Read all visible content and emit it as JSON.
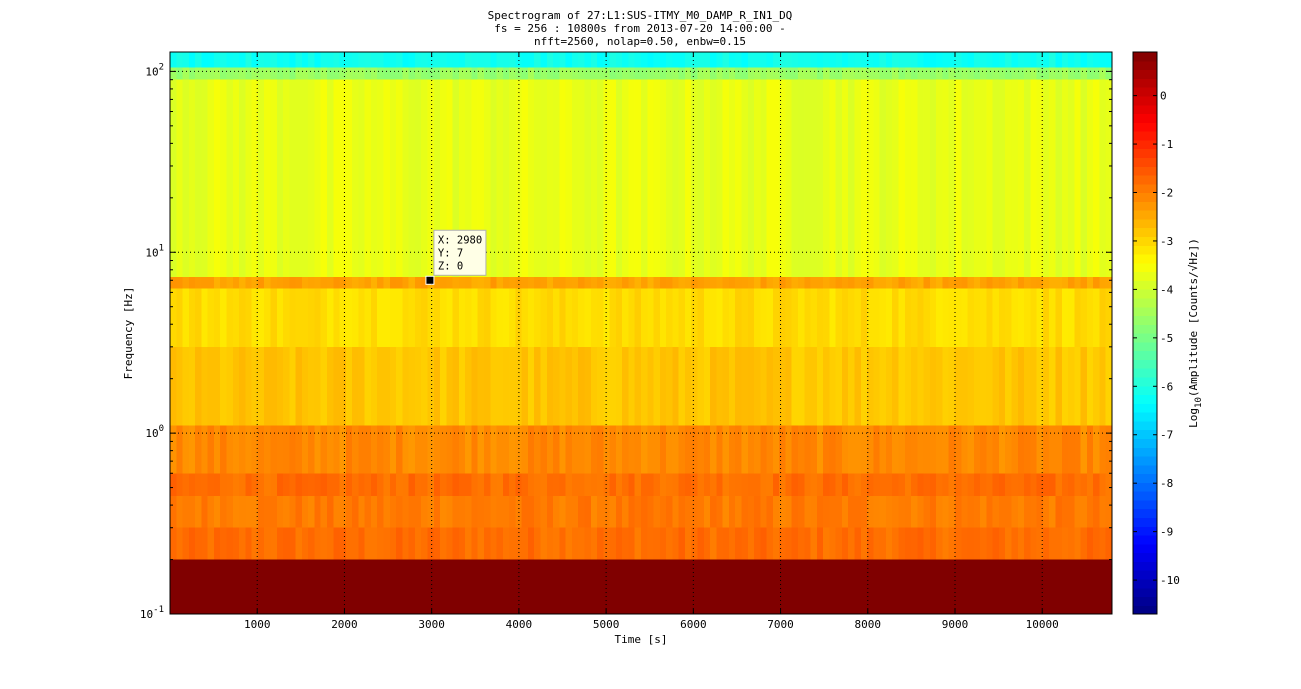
{
  "title_lines": [
    "Spectrogram of 27:L1:SUS-ITMY_M0_DAMP_R_IN1_DQ",
    "fs = 256 : 10800s from 2013-07-20 14:00:00 -",
    "nfft=2560, nolap=0.50, enbw=0.15"
  ],
  "chart_data": {
    "type": "heatmap",
    "title": "Spectrogram of 27:L1:SUS-ITMY_M0_DAMP_R_IN1_DQ",
    "subtitle": "fs = 256 : 10800s from 2013-07-20 14:00:00 - nfft=2560, nolap=0.50, enbw=0.15",
    "xlabel": "Time [s]",
    "ylabel": "Frequency [Hz]",
    "xlim": [
      0,
      10800
    ],
    "ylim": [
      0.1,
      128
    ],
    "yscale": "log",
    "grid": true,
    "x_ticks": [
      1000,
      2000,
      3000,
      4000,
      5000,
      6000,
      7000,
      8000,
      9000,
      10000
    ],
    "y_ticks": [
      {
        "value": 0.1,
        "base": "10",
        "exp": "-1"
      },
      {
        "value": 1,
        "base": "10",
        "exp": "0"
      },
      {
        "value": 10,
        "base": "10",
        "exp": "1"
      },
      {
        "value": 100,
        "base": "10",
        "exp": "2"
      }
    ],
    "colorbar": {
      "label_prefix": "Log",
      "label_sub": "10",
      "label_rest": "(Amplitude [Counts/√Hz])",
      "clim": [
        -10.7,
        0.9
      ],
      "ticks": [
        0,
        -1,
        -2,
        -3,
        -4,
        -5,
        -6,
        -7,
        -8,
        -9,
        -10
      ],
      "colormap": "jet"
    },
    "bands": [
      {
        "f_lo": 0.1,
        "f_hi": 0.2,
        "level": 0.9
      },
      {
        "f_lo": 0.2,
        "f_hi": 0.3,
        "level": -1.8
      },
      {
        "f_lo": 0.3,
        "f_hi": 0.45,
        "level": -1.95
      },
      {
        "f_lo": 0.45,
        "f_hi": 0.6,
        "level": -1.8
      },
      {
        "f_lo": 0.6,
        "f_hi": 1.1,
        "level": -2.1
      },
      {
        "f_lo": 1.1,
        "f_hi": 3.0,
        "level": -2.8
      },
      {
        "f_lo": 3.0,
        "f_hi": 6.3,
        "level": -3.05
      },
      {
        "f_lo": 6.3,
        "f_hi": 7.3,
        "level": -2.4
      },
      {
        "f_lo": 7.3,
        "f_hi": 90,
        "level": -3.7
      },
      {
        "f_lo": 90,
        "f_hi": 105,
        "level": -4.6
      },
      {
        "f_lo": 105,
        "f_hi": 128,
        "level": -6.2
      }
    ],
    "datatip": {
      "x": 2980,
      "y": 7,
      "z": 0,
      "x_label": "X: 2980",
      "y_label": "Y: 7",
      "z_label": "Z: 0"
    }
  }
}
